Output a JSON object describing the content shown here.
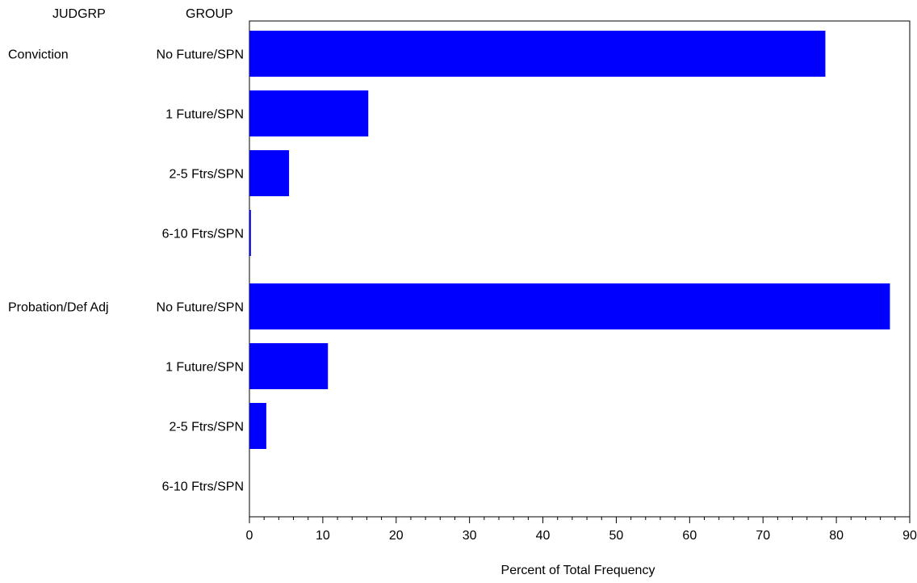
{
  "chart_data": {
    "type": "bar",
    "orientation": "horizontal",
    "header": {
      "group1": "JUDGRP",
      "group2": "GROUP"
    },
    "groups": [
      {
        "name": "Conviction",
        "categories": [
          "No Future/SPN",
          "1 Future/SPN",
          "2-5 Ftrs/SPN",
          "6-10 Ftrs/SPN"
        ],
        "values": [
          78.5,
          16.2,
          5.4,
          0.2
        ]
      },
      {
        "name": "Probation/Def Adj",
        "categories": [
          "No Future/SPN",
          "1 Future/SPN",
          "2-5 Ftrs/SPN",
          "6-10 Ftrs/SPN"
        ],
        "values": [
          87.3,
          10.7,
          2.3,
          0
        ]
      }
    ],
    "xlabel": "Percent of Total Frequency",
    "xlim": [
      0,
      90
    ],
    "xticks": [
      0,
      10,
      20,
      30,
      40,
      50,
      60,
      70,
      80,
      90
    ],
    "bar_color": "#0000ff",
    "grid": false,
    "legend": "none"
  }
}
